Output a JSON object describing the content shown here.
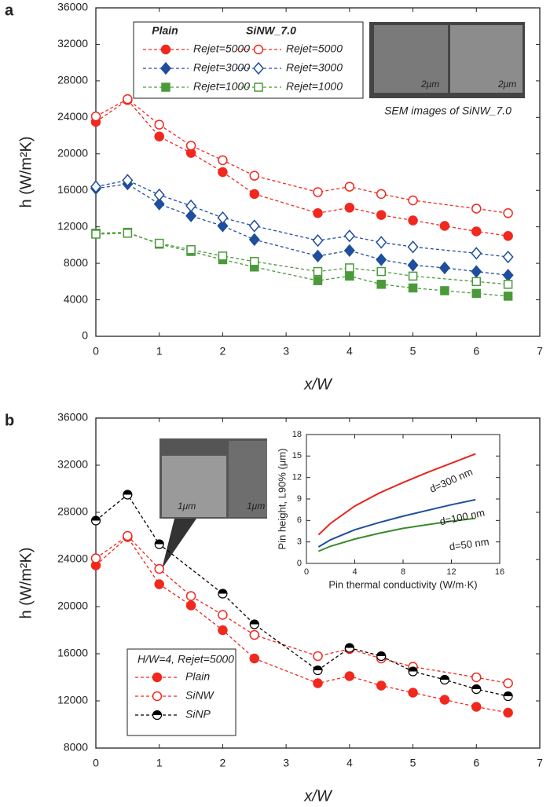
{
  "chart_data": [
    {
      "type": "line",
      "panel_label": "a",
      "x_label": "x/W",
      "y_label": "h (W/m²K)",
      "xlim": [
        0,
        7
      ],
      "xticks": [
        0,
        1,
        2,
        3,
        4,
        5,
        6,
        7
      ],
      "ylim": [
        0,
        36000
      ],
      "yticks": [
        0,
        4000,
        8000,
        12000,
        16000,
        20000,
        24000,
        28000,
        32000,
        36000
      ],
      "legend_headers": [
        "Plain",
        "SiNW_7.0"
      ],
      "annotations": [
        "2μm",
        "2μm",
        "SEM images of SiNW_7.0"
      ],
      "x": [
        0,
        0.5,
        1,
        1.5,
        2,
        2.5,
        3.5,
        4,
        4.5,
        5,
        5.5,
        6,
        6.5
      ],
      "series": [
        {
          "name": "Rejet=5000",
          "color": "#f0281e",
          "marker": "circle",
          "filled": true,
          "values": [
            23500,
            25900,
            21900,
            20100,
            18000,
            15600,
            13500,
            14100,
            13300,
            12700,
            12100,
            11500,
            11000
          ]
        },
        {
          "name": "Rejet=5000",
          "color": "#f0281e",
          "marker": "circle",
          "filled": false,
          "x": [
            0,
            0.5,
            1,
            1.5,
            2,
            2.5,
            3.5,
            4,
            4.5,
            5,
            6,
            6.5
          ],
          "values": [
            24100,
            26000,
            23200,
            20900,
            19300,
            17600,
            15800,
            16400,
            15600,
            14900,
            14000,
            13500
          ]
        },
        {
          "name": "Rejet=3000",
          "color": "#1f4e9c",
          "marker": "diamond",
          "filled": true,
          "values": [
            16200,
            16700,
            14500,
            13200,
            12100,
            10600,
            8800,
            9400,
            8400,
            7800,
            7500,
            7100,
            6700
          ]
        },
        {
          "name": "Rejet=3000",
          "color": "#1f4e9c",
          "marker": "diamond",
          "filled": false,
          "x": [
            0,
            0.5,
            1,
            1.5,
            2,
            2.5,
            3.5,
            4,
            4.5,
            5,
            6,
            6.5
          ],
          "values": [
            16400,
            17100,
            15500,
            14300,
            13000,
            12100,
            10500,
            11000,
            10300,
            9800,
            9100,
            8700
          ]
        },
        {
          "name": "Rejet=1000",
          "color": "#4a9a3a",
          "marker": "square",
          "filled": true,
          "values": [
            11300,
            11400,
            10100,
            9300,
            8400,
            7600,
            6100,
            6600,
            5700,
            5300,
            5000,
            4700,
            4400
          ]
        },
        {
          "name": "Rejet=1000",
          "color": "#4a9a3a",
          "marker": "square",
          "filled": false,
          "x": [
            0,
            0.5,
            1,
            1.5,
            2,
            2.5,
            3.5,
            4,
            4.5,
            5,
            6,
            6.5
          ],
          "values": [
            11200,
            11300,
            10200,
            9500,
            8800,
            8200,
            7100,
            7500,
            7100,
            6600,
            6000,
            5700
          ]
        }
      ]
    },
    {
      "type": "line",
      "panel_label": "b",
      "x_label": "x/W",
      "y_label": "h (W/m²K)",
      "xlim": [
        0,
        7
      ],
      "xticks": [
        0,
        1,
        2,
        3,
        4,
        5,
        6,
        7
      ],
      "ylim": [
        8000,
        36000
      ],
      "yticks": [
        8000,
        12000,
        16000,
        20000,
        24000,
        28000,
        32000,
        36000
      ],
      "legend_title": "H/W=4, Rejet=5000",
      "annotations": [
        "1μm",
        "1μm"
      ],
      "x": [
        0,
        0.5,
        1,
        1.5,
        2,
        2.5,
        3.5,
        4,
        4.5,
        5,
        5.5,
        6,
        6.5
      ],
      "series": [
        {
          "name": "Plain",
          "color": "#f0281e",
          "marker": "circle",
          "filled": true,
          "values": [
            23500,
            25900,
            21900,
            20100,
            18000,
            15600,
            13500,
            14100,
            13300,
            12700,
            12100,
            11500,
            11000
          ]
        },
        {
          "name": "SiNW",
          "color": "#f0281e",
          "marker": "circle",
          "filled": false,
          "x": [
            0,
            0.5,
            1,
            1.5,
            2,
            2.5,
            3.5,
            4,
            4.5,
            5,
            6,
            6.5
          ],
          "values": [
            24100,
            26000,
            23200,
            20900,
            19300,
            17600,
            15800,
            16400,
            15600,
            14900,
            14000,
            13500
          ]
        },
        {
          "name": "SiNP",
          "color": "#000000",
          "marker": "half-circle",
          "filled": true,
          "x": [
            0,
            0.5,
            1,
            2,
            2.5,
            3.5,
            4,
            4.5,
            5,
            5.5,
            6,
            6.5
          ],
          "values": [
            27300,
            29500,
            25300,
            21100,
            18500,
            14600,
            16500,
            15800,
            14500,
            13800,
            13000,
            12400
          ]
        }
      ]
    },
    {
      "type": "curve",
      "x_label": "Pin thermal conductivity (W/m·K)",
      "y_label": "Pin height, L90% (μm)",
      "xlim": [
        0,
        16
      ],
      "xticks": [
        0,
        4,
        8,
        12,
        16
      ],
      "ylim": [
        0,
        18
      ],
      "yticks": [
        0,
        3,
        6,
        9,
        12,
        15,
        18
      ],
      "x": [
        1,
        2,
        4,
        6,
        8,
        10,
        12,
        14
      ],
      "series": [
        {
          "name": "d=300 nm",
          "color": "#e8241c",
          "values": [
            4.0,
            5.6,
            8.0,
            9.8,
            11.3,
            12.7,
            14.0,
            15.3
          ]
        },
        {
          "name": "d=100 nm",
          "color": "#1f4e9c",
          "values": [
            2.3,
            3.3,
            4.7,
            5.7,
            6.6,
            7.4,
            8.2,
            8.9
          ]
        },
        {
          "name": "d=50 nm",
          "color": "#3d8a2c",
          "values": [
            1.7,
            2.4,
            3.4,
            4.2,
            4.9,
            5.4,
            5.9,
            6.3
          ]
        }
      ]
    }
  ]
}
